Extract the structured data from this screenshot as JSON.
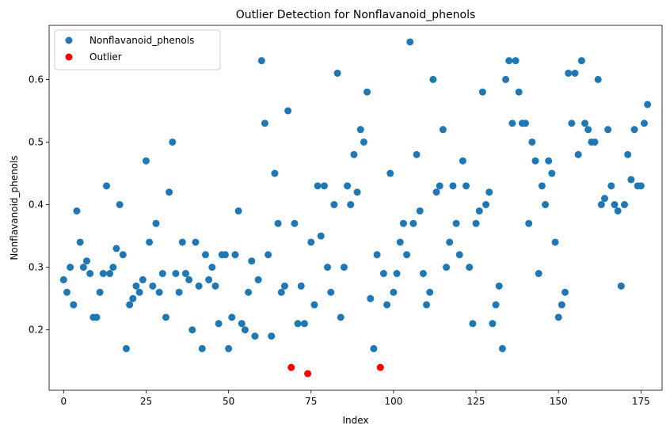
{
  "chart_data": {
    "type": "scatter",
    "title": "Outlier Detection for Nonflavanoid_phenols",
    "xlabel": "Index",
    "ylabel": "Nonflavanoid_phenols",
    "xlim": [
      -4.4,
      181.4
    ],
    "ylim": [
      0.1035,
      0.6865
    ],
    "xticks": [
      0,
      25,
      50,
      75,
      100,
      125,
      150,
      175
    ],
    "yticks": [
      0.2,
      0.3,
      0.4,
      0.5,
      0.6
    ],
    "ytick_labels": [
      "0.2",
      "0.3",
      "0.4",
      "0.5",
      "0.6"
    ],
    "grid": false,
    "legend_position": "top-left",
    "series": [
      {
        "name": "Nonflavanoid_phenols",
        "color": "#1f77b4",
        "x": [
          0,
          1,
          2,
          3,
          4,
          5,
          6,
          7,
          8,
          9,
          10,
          11,
          12,
          13,
          14,
          15,
          16,
          17,
          18,
          19,
          20,
          21,
          22,
          23,
          24,
          25,
          26,
          27,
          28,
          29,
          30,
          31,
          32,
          33,
          34,
          35,
          36,
          37,
          38,
          39,
          40,
          41,
          42,
          43,
          44,
          45,
          46,
          47,
          48,
          49,
          50,
          51,
          52,
          53,
          54,
          55,
          56,
          57,
          58,
          59,
          60,
          61,
          62,
          63,
          64,
          65,
          66,
          67,
          68,
          70,
          71,
          72,
          73,
          75,
          76,
          77,
          78,
          79,
          80,
          81,
          82,
          83,
          84,
          85,
          86,
          87,
          88,
          89,
          90,
          91,
          92,
          93,
          94,
          95,
          97,
          98,
          99,
          100,
          101,
          102,
          103,
          104,
          105,
          106,
          107,
          108,
          109,
          110,
          111,
          112,
          113,
          114,
          115,
          116,
          117,
          118,
          119,
          120,
          121,
          122,
          123,
          124,
          125,
          126,
          127,
          128,
          129,
          130,
          131,
          132,
          133,
          134,
          135,
          136,
          137,
          138,
          139,
          140,
          141,
          142,
          143,
          144,
          145,
          146,
          147,
          148,
          149,
          150,
          151,
          152,
          153,
          154,
          155,
          156,
          157,
          158,
          159,
          160,
          161,
          162,
          163,
          164,
          165,
          166,
          167,
          168,
          169,
          170,
          171,
          172,
          173,
          174,
          175,
          176,
          177
        ],
        "y": [
          0.28,
          0.26,
          0.3,
          0.24,
          0.39,
          0.34,
          0.3,
          0.31,
          0.29,
          0.22,
          0.22,
          0.26,
          0.29,
          0.43,
          0.29,
          0.3,
          0.33,
          0.4,
          0.32,
          0.17,
          0.24,
          0.25,
          0.27,
          0.26,
          0.28,
          0.47,
          0.34,
          0.27,
          0.37,
          0.26,
          0.29,
          0.22,
          0.42,
          0.5,
          0.29,
          0.26,
          0.34,
          0.29,
          0.28,
          0.2,
          0.34,
          0.27,
          0.17,
          0.32,
          0.28,
          0.3,
          0.27,
          0.21,
          0.32,
          0.32,
          0.17,
          0.22,
          0.32,
          0.39,
          0.21,
          0.2,
          0.26,
          0.31,
          0.19,
          0.28,
          0.63,
          0.53,
          0.32,
          0.19,
          0.45,
          0.37,
          0.26,
          0.27,
          0.55,
          0.37,
          0.21,
          0.27,
          0.21,
          0.34,
          0.24,
          0.43,
          0.35,
          0.43,
          0.3,
          0.26,
          0.4,
          0.61,
          0.22,
          0.3,
          0.43,
          0.4,
          0.48,
          0.42,
          0.52,
          0.5,
          0.58,
          0.25,
          0.17,
          0.32,
          0.29,
          0.24,
          0.45,
          0.26,
          0.29,
          0.34,
          0.37,
          0.32,
          0.66,
          0.37,
          0.48,
          0.39,
          0.29,
          0.24,
          0.26,
          0.6,
          0.42,
          0.43,
          0.52,
          0.3,
          0.34,
          0.43,
          0.37,
          0.32,
          0.47,
          0.43,
          0.3,
          0.21,
          0.37,
          0.39,
          0.58,
          0.4,
          0.42,
          0.21,
          0.24,
          0.27,
          0.17,
          0.6,
          0.63,
          0.53,
          0.63,
          0.58,
          0.53,
          0.53,
          0.37,
          0.5,
          0.47,
          0.29,
          0.43,
          0.4,
          0.47,
          0.45,
          0.34,
          0.22,
          0.24,
          0.26,
          0.61,
          0.53,
          0.61,
          0.48,
          0.63,
          0.53,
          0.52,
          0.5,
          0.5,
          0.6,
          0.4,
          0.41,
          0.52,
          0.43,
          0.4,
          0.39,
          0.27,
          0.4,
          0.48,
          0.44,
          0.52,
          0.43,
          0.43,
          0.53,
          0.56
        ]
      },
      {
        "name": "Outlier",
        "color": "#ff0000",
        "x": [
          69,
          74,
          96
        ],
        "y": [
          0.14,
          0.13,
          0.14
        ]
      }
    ]
  }
}
